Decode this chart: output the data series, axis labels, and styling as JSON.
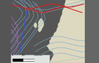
{
  "bg_ocean": "#b8cfe0",
  "bg_land": "#ddd8c0",
  "bg_land_light": "#e8e4d4",
  "left_strip_color": "#555555",
  "right_strip_color": "#666666",
  "isobar_blue": "#7aaac8",
  "isobar_purple": "#aa66bb",
  "front_cold": "#3355cc",
  "front_warm": "#cc2222",
  "front_occluded": "#cc2222",
  "legend_bg": "#e8e8e8",
  "xlim": [
    0,
    140
  ],
  "ylim": [
    0,
    90
  ]
}
